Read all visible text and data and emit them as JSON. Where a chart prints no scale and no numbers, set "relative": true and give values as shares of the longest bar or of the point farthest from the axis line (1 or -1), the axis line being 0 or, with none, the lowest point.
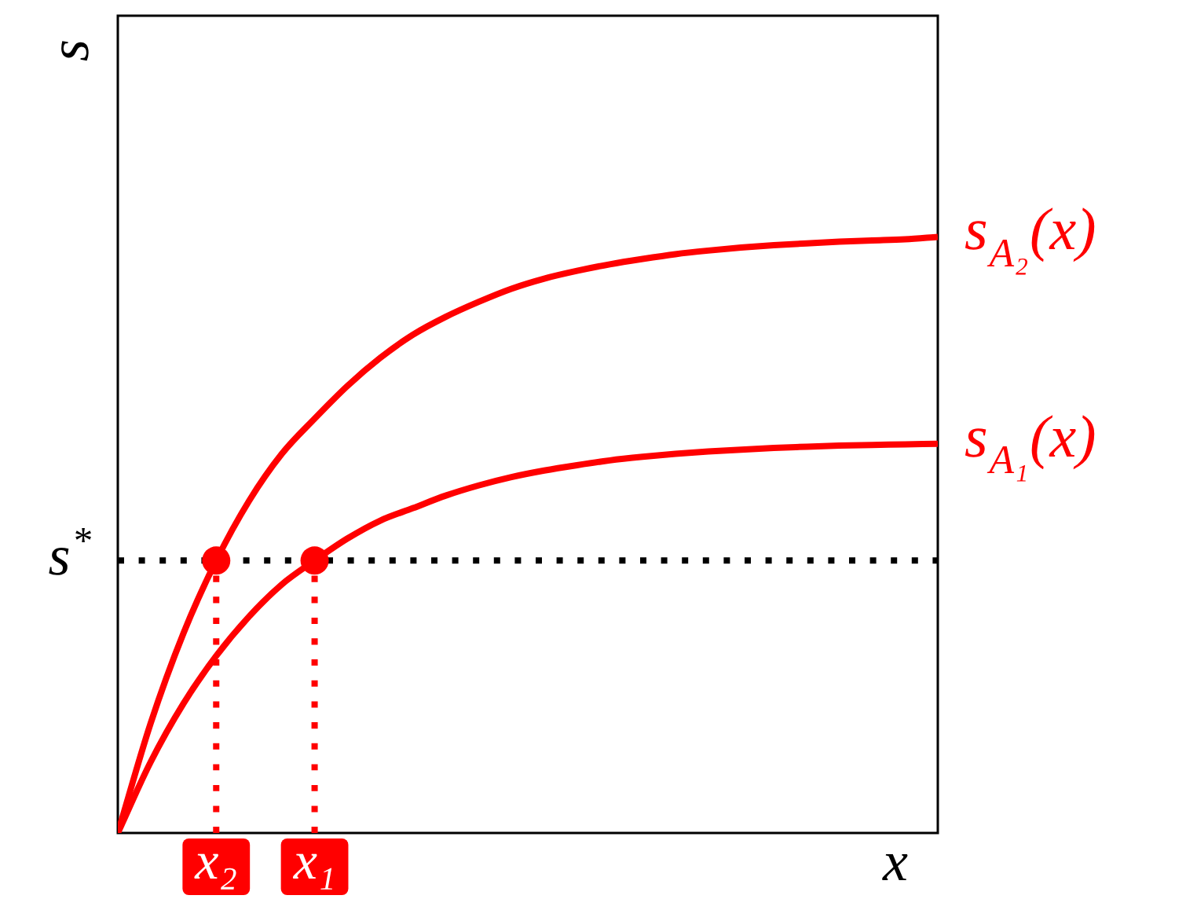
{
  "chart_data": {
    "type": "line",
    "relative": true,
    "xlabel": "x",
    "ylabel": "s",
    "categories": [
      null,
      null,
      null,
      "x₂",
      null,
      null,
      "x₁",
      null,
      null,
      null,
      null,
      null,
      null,
      null,
      null,
      null,
      null,
      null,
      null,
      null,
      null,
      null,
      null,
      null,
      null,
      null
    ],
    "series": [
      {
        "name": "s$_{A₂}$(x)",
        "color": "#ff0000",
        "values": [
          0,
          0.184,
          0.335,
          0.457,
          0.557,
          0.636,
          0.695,
          0.75,
          0.797,
          0.836,
          0.866,
          0.891,
          0.913,
          0.93,
          0.943,
          0.954,
          0.963,
          0.971,
          0.977,
          0.982,
          0.986,
          0.989,
          0.992,
          0.994,
          0.996,
          1
        ]
      },
      {
        "name": "s$_{A₁}$(x)",
        "color": "#ff0000",
        "values": [
          0,
          0.119,
          0.217,
          0.297,
          0.363,
          0.417,
          0.457,
          0.494,
          0.524,
          0.545,
          0.566,
          0.583,
          0.597,
          0.608,
          0.617,
          0.625,
          0.631,
          0.636,
          0.64,
          0.643,
          0.646,
          0.648,
          0.65,
          0.651,
          0.652,
          0.653
        ]
      },
      {
        "type": "scatter",
        "color": "#ff0000",
        "marker": "circle",
        "values": [
          null,
          null,
          null,
          0.457,
          null,
          null,
          0.457,
          null,
          null,
          null,
          null,
          null,
          null,
          null,
          null,
          null,
          null,
          null,
          null,
          null,
          null,
          null,
          null,
          null,
          null,
          null
        ]
      },
      {
        "type": "line",
        "color": "#ff0000",
        "line_style": "dotted",
        "x": [
          "x₂",
          "x₂"
        ],
        "values": [
          0,
          0.457
        ]
      },
      {
        "type": "line",
        "color": "#ff0000",
        "line_style": "dotted",
        "x": [
          "x₁",
          "x₁"
        ],
        "values": [
          0,
          0.457
        ]
      }
    ],
    "ref_lines": [
      {
        "axis": "y",
        "value": 0.457,
        "label": "s$^{*}$",
        "color": "#000000",
        "line_style": "dotted"
      }
    ],
    "grid": false,
    "legend": false,
    "marker": "none",
    "line_style": "solid"
  }
}
